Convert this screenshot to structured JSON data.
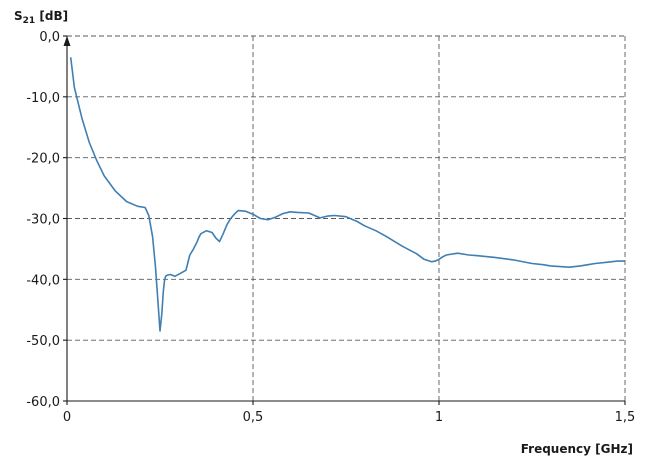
{
  "chart_data": {
    "type": "line",
    "title": "",
    "ylabel_main": "S",
    "ylabel_sub": "21",
    "ylabel_unit": " [dB]",
    "xlabel": "Frequency [GHz]",
    "xlim": [
      0,
      1.5
    ],
    "ylim": [
      -60,
      0
    ],
    "xticks": [
      0,
      0.5,
      1,
      1.5
    ],
    "xtick_labels": [
      "0",
      "0,5",
      "1",
      "1,5"
    ],
    "yticks": [
      0,
      -10,
      -20,
      -30,
      -40,
      -50,
      -60
    ],
    "ytick_labels": [
      "0,0",
      "-10,0",
      "-20,0",
      "-30,0",
      "-40,0",
      "-50,0",
      "-60,0"
    ],
    "grid": true,
    "colors": {
      "series": "#3f7fb3"
    },
    "series": [
      {
        "x": [
          0.01,
          0.02,
          0.04,
          0.06,
          0.08,
          0.1,
          0.13,
          0.16,
          0.19,
          0.21,
          0.22,
          0.23,
          0.238,
          0.245,
          0.25,
          0.255,
          0.259,
          0.262,
          0.265,
          0.27,
          0.278,
          0.29,
          0.305,
          0.32,
          0.33,
          0.34,
          0.35,
          0.355,
          0.36,
          0.375,
          0.39,
          0.4,
          0.41,
          0.42,
          0.43,
          0.44,
          0.45,
          0.46,
          0.48,
          0.5,
          0.52,
          0.54,
          0.56,
          0.58,
          0.6,
          0.62,
          0.65,
          0.68,
          0.7,
          0.72,
          0.75,
          0.78,
          0.8,
          0.83,
          0.86,
          0.9,
          0.94,
          0.96,
          0.98,
          0.99,
          1.0,
          1.01,
          1.02,
          1.05,
          1.08,
          1.1,
          1.15,
          1.2,
          1.25,
          1.28,
          1.3,
          1.35,
          1.38,
          1.4,
          1.42,
          1.45,
          1.48,
          1.5
        ],
        "y": [
          -3.5,
          -8.5,
          -13.5,
          -17.5,
          -20.5,
          -23.0,
          -25.5,
          -27.2,
          -28.0,
          -28.2,
          -29.5,
          -33.0,
          -38.0,
          -44.0,
          -48.5,
          -45.5,
          -42.0,
          -40.2,
          -39.5,
          -39.3,
          -39.2,
          -39.5,
          -39.0,
          -38.5,
          -36.0,
          -35.0,
          -33.8,
          -33.0,
          -32.5,
          -32.0,
          -32.3,
          -33.2,
          -33.8,
          -32.5,
          -31.0,
          -30.0,
          -29.3,
          -28.7,
          -28.8,
          -29.3,
          -30.0,
          -30.2,
          -29.8,
          -29.2,
          -28.9,
          -29.0,
          -29.1,
          -29.9,
          -29.6,
          -29.5,
          -29.7,
          -30.5,
          -31.2,
          -32.0,
          -33.0,
          -34.5,
          -35.8,
          -36.7,
          -37.1,
          -37.0,
          -36.7,
          -36.3,
          -36.0,
          -35.7,
          -36.0,
          -36.1,
          -36.4,
          -36.8,
          -37.4,
          -37.6,
          -37.8,
          -38.0,
          -37.8,
          -37.6,
          -37.4,
          -37.2,
          -37.0,
          -37.0
        ]
      }
    ]
  }
}
